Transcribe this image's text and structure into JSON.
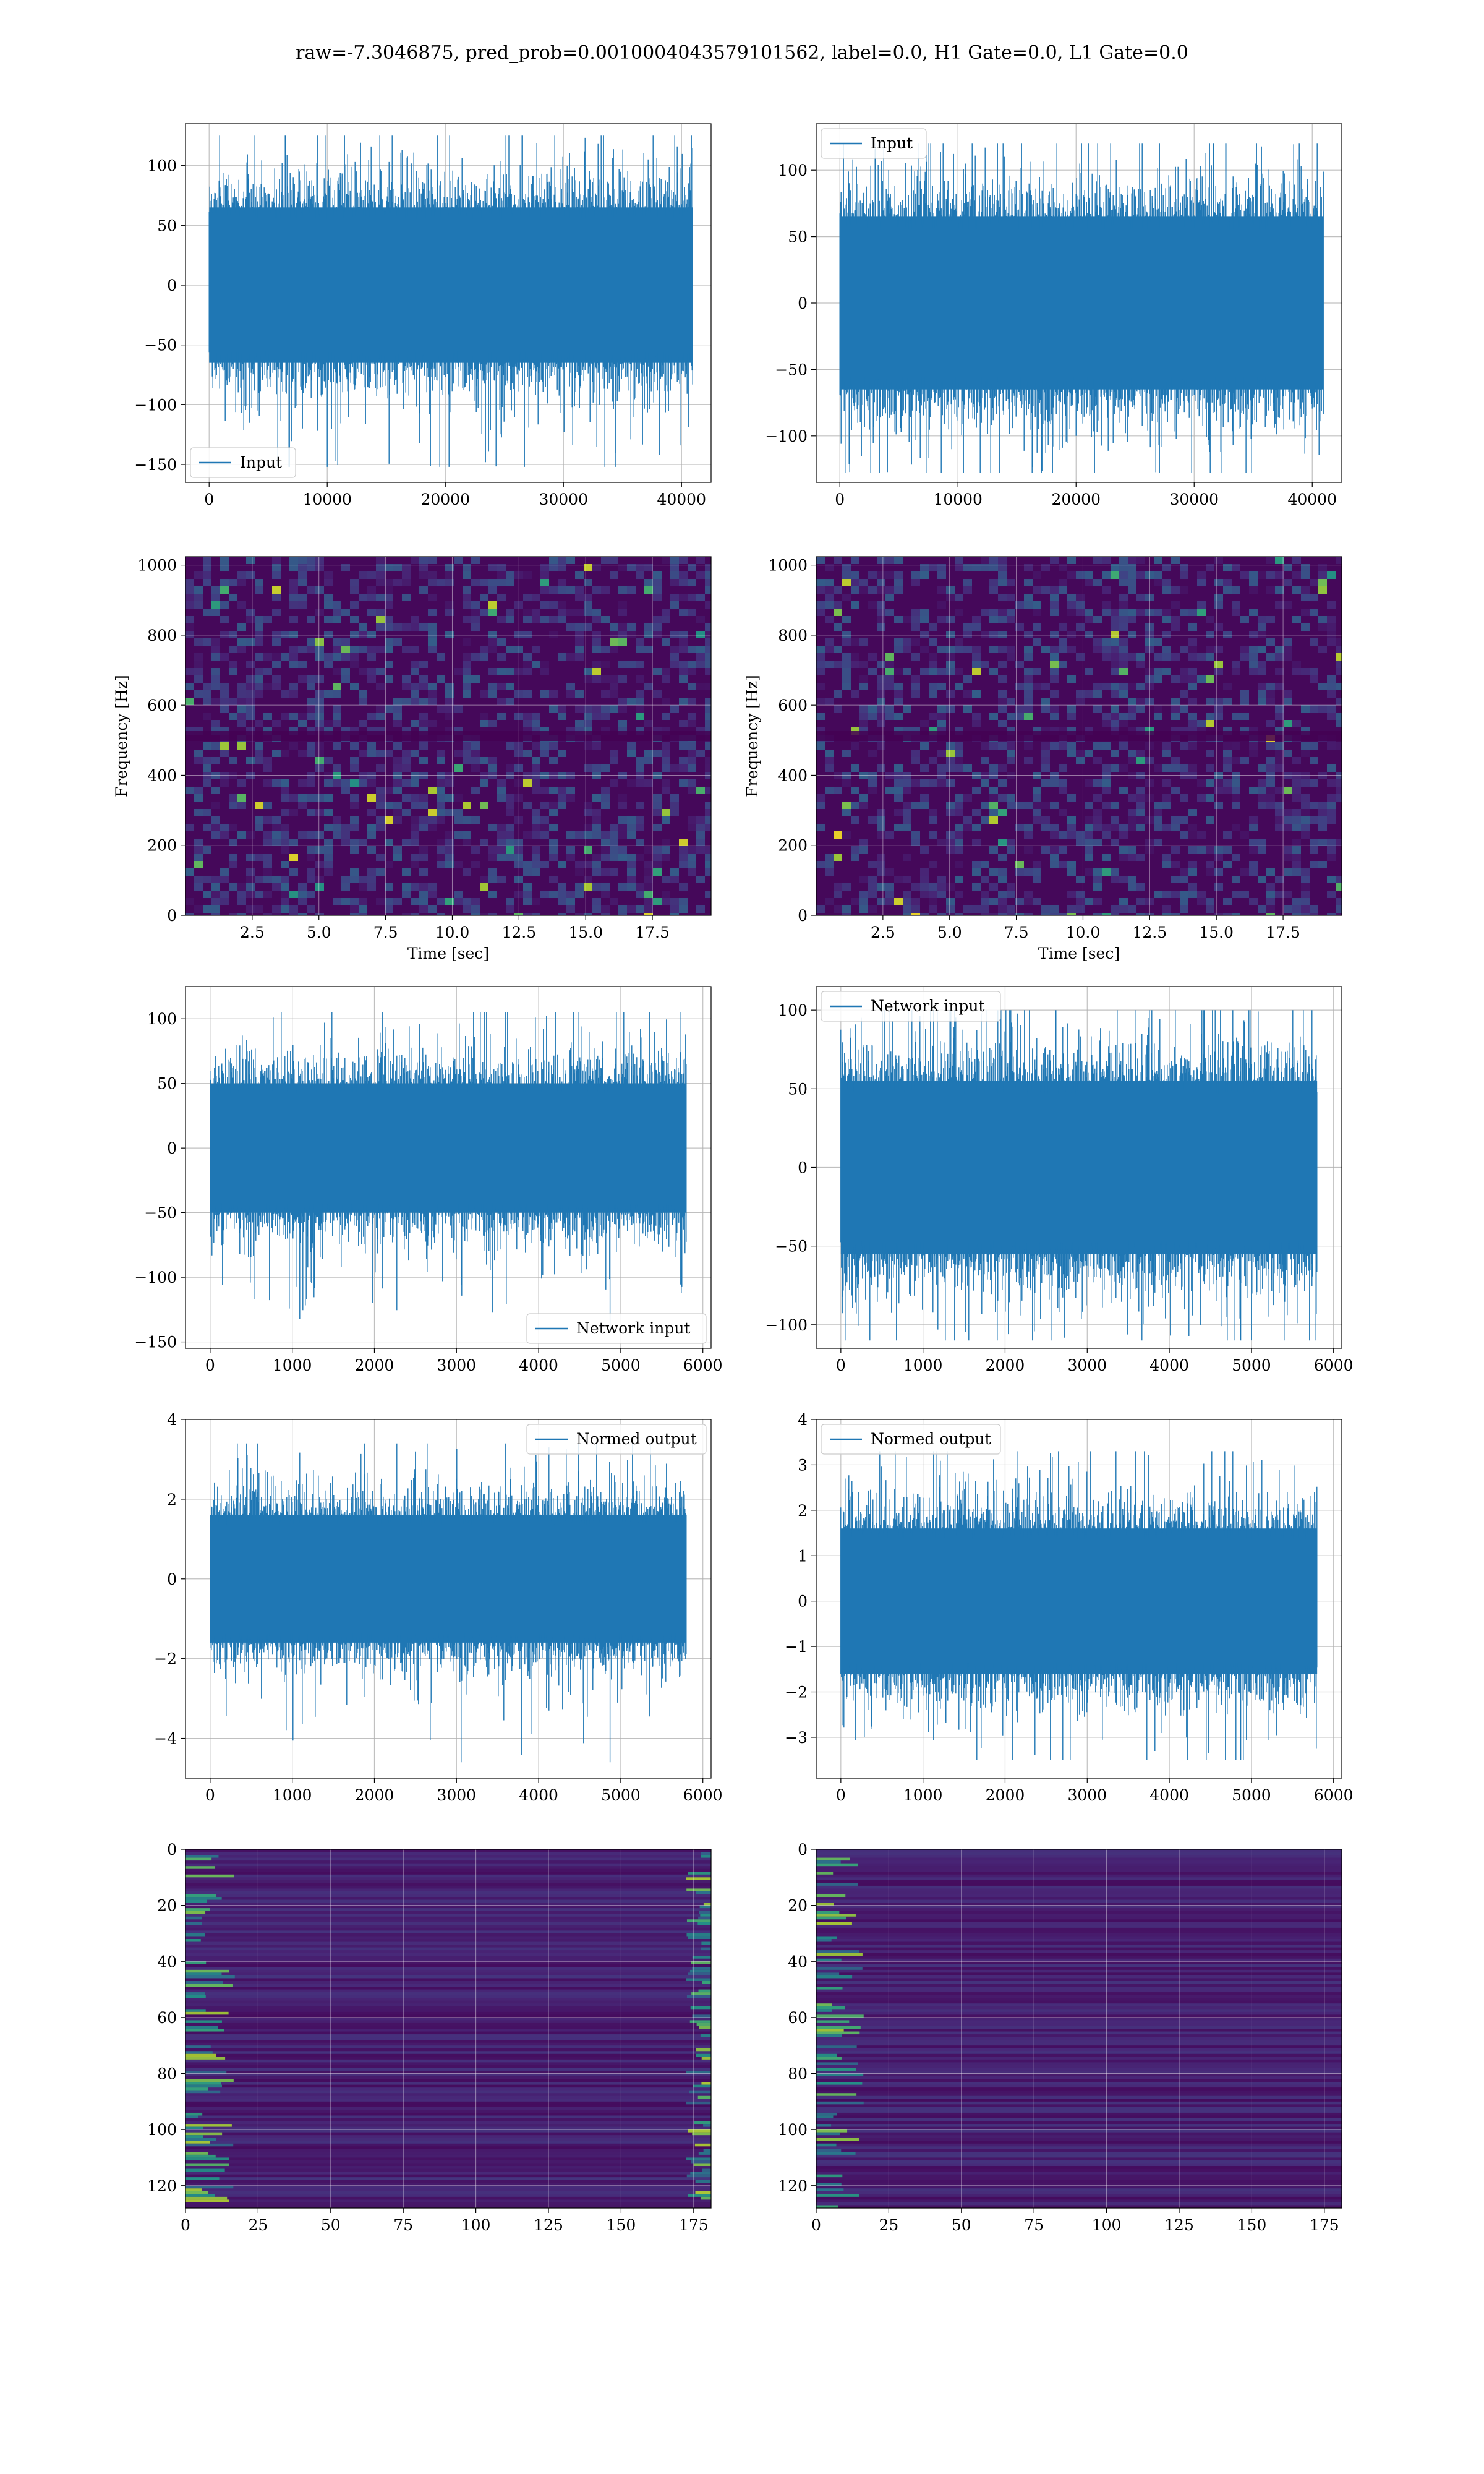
{
  "figure": {
    "title": "raw=-7.3046875, pred_prob=0.0010004043579101562, label=0.0, H1 Gate=0.0, L1 Gate=0.0"
  },
  "colors": {
    "line": "#1f77b4",
    "grid": "#b0b0b0",
    "viridis_low": "#440154",
    "viridis_high": "#fde725"
  },
  "chart_data": [
    {
      "id": "input-h1",
      "type": "line",
      "row": 0,
      "col": 0,
      "xlim": [
        -2000,
        42500
      ],
      "ylim": [
        -165,
        135
      ],
      "xticks": [
        0,
        10000,
        20000,
        30000,
        40000
      ],
      "yticks": [
        -150,
        -100,
        -50,
        0,
        50,
        100
      ],
      "xticklabels": [
        "0",
        "10000",
        "20000",
        "30000",
        "40000"
      ],
      "yticklabels": [
        "−150",
        "−100",
        "−50",
        "0",
        "50",
        "100"
      ],
      "legend": {
        "label": "Input",
        "loc": "lower left"
      },
      "signal": {
        "n": 40960,
        "center": 0,
        "band": 65,
        "max": 125,
        "min": -152
      },
      "xlabel": "",
      "ylabel": ""
    },
    {
      "id": "input-l1",
      "type": "line",
      "row": 0,
      "col": 1,
      "xlim": [
        -2000,
        42500
      ],
      "ylim": [
        -135,
        135
      ],
      "xticks": [
        0,
        10000,
        20000,
        30000,
        40000
      ],
      "yticks": [
        -100,
        -50,
        0,
        50,
        100
      ],
      "xticklabels": [
        "0",
        "10000",
        "20000",
        "30000",
        "40000"
      ],
      "yticklabels": [
        "−100",
        "−50",
        "0",
        "50",
        "100"
      ],
      "legend": {
        "label": "Input",
        "loc": "upper left"
      },
      "signal": {
        "n": 40960,
        "center": 0,
        "band": 65,
        "max": 120,
        "min": -128
      },
      "xlabel": "",
      "ylabel": ""
    },
    {
      "id": "spec-h1",
      "type": "heatmap",
      "row": 1,
      "col": 0,
      "xlim": [
        0,
        19.7
      ],
      "ylim": [
        0,
        1024
      ],
      "xticks": [
        2.5,
        5.0,
        7.5,
        10.0,
        12.5,
        15.0,
        17.5
      ],
      "yticks": [
        0,
        200,
        400,
        600,
        800,
        1000
      ],
      "xticklabels": [
        "2.5",
        "5.0",
        "7.5",
        "10.0",
        "12.5",
        "15.0",
        "17.5"
      ],
      "yticklabels": [
        "0",
        "200",
        "400",
        "600",
        "800",
        "1000"
      ],
      "xlabel": "Time [sec]",
      "ylabel": "Frequency [Hz]"
    },
    {
      "id": "spec-l1",
      "type": "heatmap",
      "row": 1,
      "col": 1,
      "xlim": [
        0,
        19.7
      ],
      "ylim": [
        0,
        1024
      ],
      "xticks": [
        2.5,
        5.0,
        7.5,
        10.0,
        12.5,
        15.0,
        17.5
      ],
      "yticks": [
        0,
        200,
        400,
        600,
        800,
        1000
      ],
      "xticklabels": [
        "2.5",
        "5.0",
        "7.5",
        "10.0",
        "12.5",
        "15.0",
        "17.5"
      ],
      "yticklabels": [
        "0",
        "200",
        "400",
        "600",
        "800",
        "1000"
      ],
      "xlabel": "Time [sec]",
      "ylabel": "Frequency [Hz]"
    },
    {
      "id": "net-h1",
      "type": "line",
      "row": 2,
      "col": 0,
      "xlim": [
        -300,
        6100
      ],
      "ylim": [
        -155,
        125
      ],
      "xticks": [
        0,
        1000,
        2000,
        3000,
        4000,
        5000,
        6000
      ],
      "yticks": [
        -150,
        -100,
        -50,
        0,
        50,
        100
      ],
      "xticklabels": [
        "0",
        "1000",
        "2000",
        "3000",
        "4000",
        "5000",
        "6000"
      ],
      "yticklabels": [
        "−150",
        "−100",
        "−50",
        "0",
        "50",
        "100"
      ],
      "legend": {
        "label": "Network input",
        "loc": "lower right"
      },
      "signal": {
        "n": 5800,
        "center": 0,
        "band": 50,
        "max": 105,
        "min": -142
      },
      "xlabel": "",
      "ylabel": ""
    },
    {
      "id": "net-l1",
      "type": "line",
      "row": 2,
      "col": 1,
      "xlim": [
        -300,
        6100
      ],
      "ylim": [
        -115,
        115
      ],
      "xticks": [
        0,
        1000,
        2000,
        3000,
        4000,
        5000,
        6000
      ],
      "yticks": [
        -100,
        -50,
        0,
        50,
        100
      ],
      "xticklabels": [
        "0",
        "1000",
        "2000",
        "3000",
        "4000",
        "5000",
        "6000"
      ],
      "yticklabels": [
        "−100",
        "−50",
        "0",
        "50",
        "100"
      ],
      "legend": {
        "label": "Network input",
        "loc": "upper left"
      },
      "signal": {
        "n": 5800,
        "center": 0,
        "band": 55,
        "max": 100,
        "min": -110
      },
      "xlabel": "",
      "ylabel": ""
    },
    {
      "id": "norm-h1",
      "type": "line",
      "row": 3,
      "col": 0,
      "xlim": [
        -300,
        6100
      ],
      "ylim": [
        -5,
        4
      ],
      "xticks": [
        0,
        1000,
        2000,
        3000,
        4000,
        5000,
        6000
      ],
      "yticks": [
        -4,
        -2,
        0,
        2,
        4
      ],
      "xticklabels": [
        "0",
        "1000",
        "2000",
        "3000",
        "4000",
        "5000",
        "6000"
      ],
      "yticklabels": [
        "−4",
        "−2",
        "0",
        "2",
        "4"
      ],
      "legend": {
        "label": "Normed output",
        "loc": "upper right"
      },
      "signal": {
        "n": 5800,
        "center": 0,
        "band": 1.6,
        "max": 3.4,
        "min": -4.6
      },
      "xlabel": "",
      "ylabel": ""
    },
    {
      "id": "norm-l1",
      "type": "line",
      "row": 3,
      "col": 1,
      "xlim": [
        -300,
        6100
      ],
      "ylim": [
        -3.9,
        4
      ],
      "xticks": [
        0,
        1000,
        2000,
        3000,
        4000,
        5000,
        6000
      ],
      "yticks": [
        -3,
        -2,
        -1,
        0,
        1,
        2,
        3,
        4
      ],
      "xticklabels": [
        "0",
        "1000",
        "2000",
        "3000",
        "4000",
        "5000",
        "6000"
      ],
      "yticklabels": [
        "−3",
        "−2",
        "−1",
        "0",
        "1",
        "2",
        "3",
        "4"
      ],
      "legend": {
        "label": "Normed output",
        "loc": "upper left"
      },
      "signal": {
        "n": 5800,
        "center": 0,
        "band": 1.6,
        "max": 3.3,
        "min": -3.5
      },
      "xlabel": "",
      "ylabel": ""
    },
    {
      "id": "feat-h1",
      "type": "heatmap",
      "row": 4,
      "col": 0,
      "xlim": [
        0,
        181
      ],
      "ylim": [
        128,
        0
      ],
      "xticks": [
        0,
        25,
        50,
        75,
        100,
        125,
        150,
        175
      ],
      "yticks": [
        0,
        20,
        40,
        60,
        80,
        100,
        120
      ],
      "xticklabels": [
        "0",
        "25",
        "50",
        "75",
        "100",
        "125",
        "150",
        "175"
      ],
      "yticklabels": [
        "0",
        "20",
        "40",
        "60",
        "80",
        "100",
        "120"
      ],
      "xlabel": "",
      "ylabel": ""
    },
    {
      "id": "feat-l1",
      "type": "heatmap",
      "row": 4,
      "col": 1,
      "xlim": [
        0,
        181
      ],
      "ylim": [
        128,
        0
      ],
      "xticks": [
        0,
        25,
        50,
        75,
        100,
        125,
        150,
        175
      ],
      "yticks": [
        0,
        20,
        40,
        60,
        80,
        100,
        120
      ],
      "xticklabels": [
        "0",
        "25",
        "50",
        "75",
        "100",
        "125",
        "150",
        "175"
      ],
      "yticklabels": [
        "0",
        "20",
        "40",
        "60",
        "80",
        "100",
        "120"
      ],
      "xlabel": "",
      "ylabel": ""
    }
  ]
}
